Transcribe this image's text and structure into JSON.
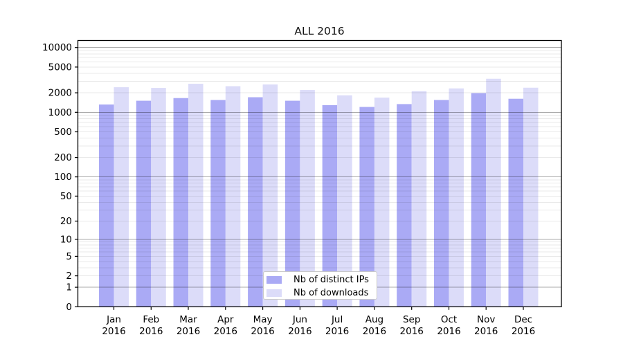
{
  "chart_data": {
    "type": "bar",
    "title": "ALL 2016",
    "categories": [
      "Jan 2016",
      "Feb 2016",
      "Mar 2016",
      "Apr 2016",
      "May 2016",
      "Jun 2016",
      "Jul 2016",
      "Aug 2016",
      "Sep 2016",
      "Oct 2016",
      "Nov 2016",
      "Dec 2016"
    ],
    "series": [
      {
        "name": "Nb of distinct IPs",
        "color": "#aaaaf5",
        "values": [
          1320,
          1510,
          1660,
          1550,
          1710,
          1510,
          1290,
          1210,
          1340,
          1550,
          1980,
          1620
        ]
      },
      {
        "name": "Nb of downloads",
        "color": "#dcdcf9",
        "values": [
          2440,
          2380,
          2760,
          2530,
          2690,
          2210,
          1830,
          1690,
          2120,
          2340,
          3300,
          2400
        ]
      }
    ],
    "xlabel": "",
    "ylabel": "",
    "y_scale": "log1p",
    "y_tick_values": [
      0,
      1,
      2,
      5,
      10,
      20,
      50,
      100,
      200,
      500,
      1000,
      2000,
      5000,
      10000
    ],
    "ylim": [
      0,
      10000
    ],
    "grid": true,
    "minor_grid": true,
    "legend_position": "lower center",
    "background_color": "#ffffff",
    "axis_color": "#000000",
    "major_grid_color": "#aaaaaa",
    "minor_grid_color": "#e9e9e9"
  }
}
